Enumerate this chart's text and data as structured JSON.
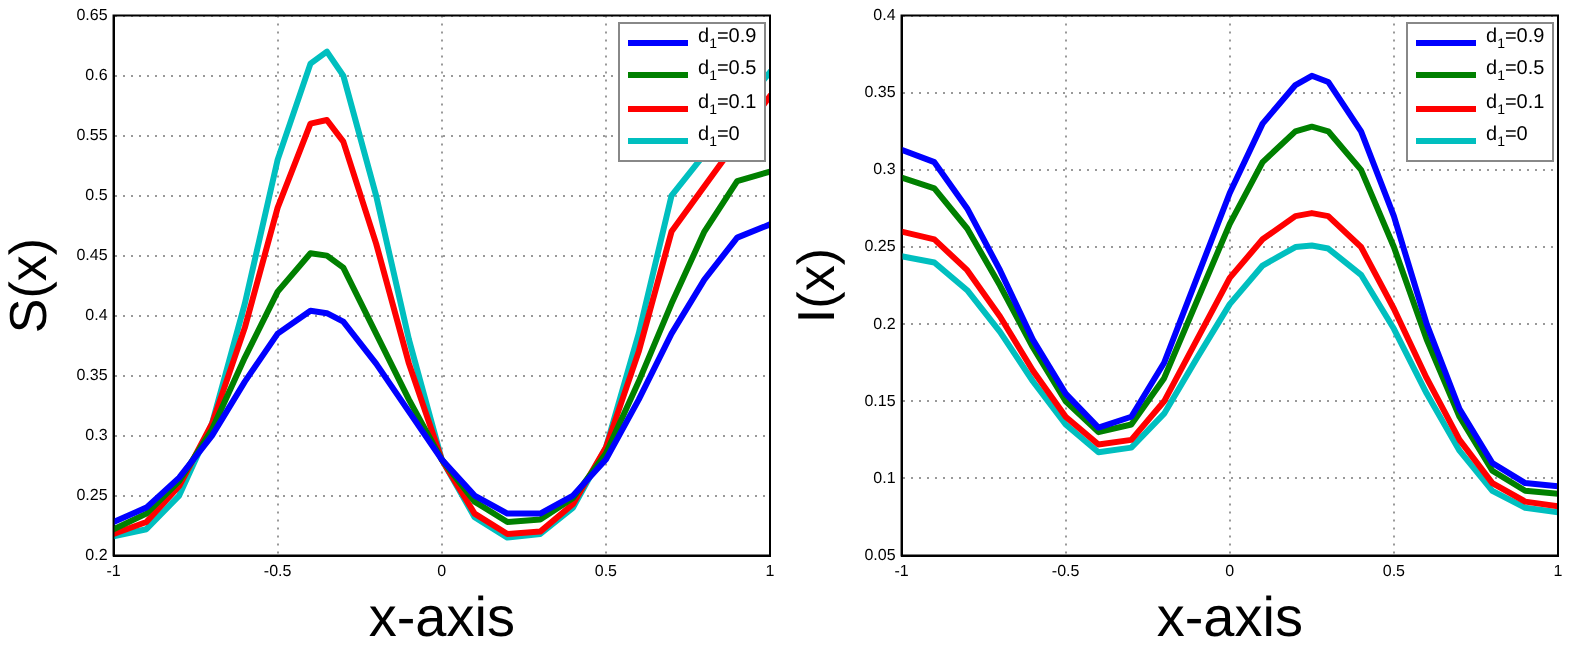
{
  "chart_data": [
    {
      "type": "line",
      "xlabel": "x-axis",
      "ylabel": "S(x)",
      "legend": "top right",
      "grid": true,
      "marker": "none",
      "line_style": "solid",
      "xlim": [
        -1,
        1
      ],
      "xticks": [
        -1,
        -0.5,
        0,
        0.5,
        1
      ],
      "ylim": [
        0.2,
        0.65
      ],
      "yticks": [
        0.2,
        0.25,
        0.3,
        0.35,
        0.4,
        0.45,
        0.5,
        0.55,
        0.6,
        0.65
      ],
      "x": [
        -1,
        -0.9,
        -0.8,
        -0.7,
        -0.6,
        -0.5,
        -0.4,
        -0.35,
        -0.3,
        -0.2,
        -0.1,
        0,
        0.1,
        0.2,
        0.3,
        0.4,
        0.5,
        0.6,
        0.7,
        0.8,
        0.9,
        1
      ],
      "series": [
        {
          "name": "d$_{1}$=0.9",
          "color": "#0000ff",
          "values": [
            0.228,
            0.24,
            0.265,
            0.3,
            0.345,
            0.385,
            0.404,
            0.402,
            0.395,
            0.36,
            0.32,
            0.28,
            0.25,
            0.235,
            0.235,
            0.25,
            0.28,
            0.33,
            0.385,
            0.43,
            0.465,
            0.476
          ]
        },
        {
          "name": "d$_{1}$=0.5",
          "color": "#008000",
          "values": [
            0.222,
            0.235,
            0.262,
            0.305,
            0.365,
            0.42,
            0.452,
            0.45,
            0.44,
            0.385,
            0.33,
            0.28,
            0.245,
            0.228,
            0.23,
            0.248,
            0.285,
            0.345,
            0.41,
            0.47,
            0.512,
            0.52
          ]
        },
        {
          "name": "d$_{1}$=0.1",
          "color": "#ff0000",
          "values": [
            0.218,
            0.228,
            0.258,
            0.31,
            0.39,
            0.49,
            0.56,
            0.563,
            0.545,
            0.46,
            0.36,
            0.28,
            0.235,
            0.218,
            0.22,
            0.243,
            0.29,
            0.37,
            0.47,
            null,
            null,
            0.583
          ]
        },
        {
          "name": "d$_{1}$=0",
          "color": "#00bfbf",
          "values": [
            0.216,
            0.222,
            0.25,
            0.31,
            0.41,
            0.53,
            0.61,
            0.62,
            0.6,
            0.5,
            0.38,
            0.28,
            0.232,
            0.215,
            0.218,
            0.24,
            0.29,
            0.385,
            0.5,
            null,
            null,
            0.603
          ]
        }
      ]
    },
    {
      "type": "line",
      "xlabel": "x-axis",
      "ylabel": "I(x)",
      "legend": "top right",
      "grid": true,
      "marker": "none",
      "line_style": "solid",
      "xlim": [
        -1,
        1
      ],
      "xticks": [
        -1,
        -0.5,
        0,
        0.5,
        1
      ],
      "ylim": [
        0.05,
        0.4
      ],
      "yticks": [
        0.05,
        0.1,
        0.15,
        0.2,
        0.25,
        0.3,
        0.35,
        0.4
      ],
      "x": [
        -1,
        -0.9,
        -0.8,
        -0.7,
        -0.6,
        -0.5,
        -0.4,
        -0.3,
        -0.2,
        -0.1,
        0,
        0.1,
        0.2,
        0.25,
        0.3,
        0.4,
        0.5,
        0.6,
        0.7,
        0.8,
        0.9,
        1
      ],
      "series": [
        {
          "name": "d$_{1}$=0.9",
          "color": "#0000ff",
          "values": [
            0.313,
            0.305,
            0.275,
            0.235,
            0.19,
            0.155,
            0.133,
            0.14,
            0.175,
            0.23,
            0.285,
            0.33,
            0.355,
            0.361,
            0.357,
            0.325,
            0.27,
            0.2,
            0.145,
            0.11,
            0.097,
            0.095
          ]
        },
        {
          "name": "d$_{1}$=0.5",
          "color": "#008000",
          "values": [
            0.295,
            0.288,
            0.262,
            0.225,
            0.185,
            0.15,
            0.13,
            0.135,
            0.165,
            0.215,
            0.265,
            0.305,
            0.325,
            0.328,
            0.325,
            0.3,
            0.25,
            0.19,
            0.14,
            0.105,
            0.092,
            0.09
          ]
        },
        {
          "name": "d$_{1}$=0.1",
          "color": "#ff0000",
          "values": [
            0.26,
            0.255,
            0.235,
            0.205,
            0.17,
            0.14,
            0.122,
            0.125,
            0.15,
            0.19,
            0.23,
            0.255,
            0.27,
            0.272,
            0.27,
            0.25,
            0.21,
            0.165,
            0.125,
            0.097,
            0.085,
            0.082
          ]
        },
        {
          "name": "d$_{1}$=0",
          "color": "#00bfbf",
          "values": [
            0.244,
            0.24,
            0.222,
            0.195,
            0.163,
            0.135,
            0.117,
            0.12,
            0.142,
            0.178,
            0.213,
            0.238,
            0.25,
            0.251,
            0.249,
            0.232,
            0.197,
            0.155,
            0.118,
            0.092,
            0.081,
            0.078
          ]
        }
      ]
    }
  ]
}
